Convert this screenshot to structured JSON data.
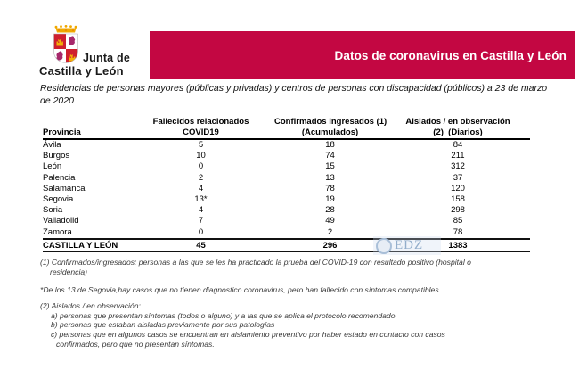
{
  "logo": {
    "line1": "Junta de",
    "line2": "Castilla y León"
  },
  "banner": {
    "title": "Datos de coronavirus en Castilla y León",
    "bg_color": "#C30742"
  },
  "subtitle": "Residencias de personas mayores (públicas y privadas) y centros de personas con discapacidad (públicos) a 23 de marzo de 2020",
  "table": {
    "headers": [
      {
        "line1": "Provincia",
        "line2": ""
      },
      {
        "line1": "Fallecidos relacionados",
        "line2": "COVID19"
      },
      {
        "line1": "Confirmados ingresados (1)",
        "line2": "(Acumulados)"
      },
      {
        "line1": "Aislados / en observación",
        "line2": "(2)  (Diarios)"
      }
    ],
    "rows": [
      [
        "Ávila",
        "5",
        "18",
        "84"
      ],
      [
        "Burgos",
        "10",
        "74",
        "211"
      ],
      [
        "León",
        "0",
        "15",
        "312"
      ],
      [
        "Palencia",
        "2",
        "13",
        "37"
      ],
      [
        "Salamanca",
        "4",
        "78",
        "120"
      ],
      [
        "Segovia",
        "13*",
        "19",
        "158"
      ],
      [
        "Soria",
        "4",
        "28",
        "298"
      ],
      [
        "Valladolid",
        "7",
        "49",
        "85"
      ],
      [
        "Zamora",
        "0",
        "2",
        "78"
      ]
    ],
    "total": [
      "CASTILLA Y LEÓN",
      "45",
      "296",
      "1383"
    ]
  },
  "watermark": {
    "text": "EDZ",
    "color": "#93AECB"
  },
  "footnotes": {
    "note1_line1": "(1) Confirmados/ingresados: personas a las que se les ha practicado la prueba del COVID-19 con resultado positivo (hospital o",
    "note1_line2": "residencia)",
    "segovia_note": "*De los 13 de Segovia,hay casos que no tienen diagnostico coronavirus, pero han fallecido con síntomas compatibles",
    "note2_title": "(2) Aislados / en observación:",
    "note2_item_a": "a) personas que presentan síntomas (todos o alguno) y a las que se aplica el protocolo recomendado",
    "note2_item_b": "b) personas que estaban aisladas previamente por sus patologías",
    "note2_item_c_line1": "c) personas que en algunos casos se encuentran en aislamiento preventivo por haber estado en contacto con casos",
    "note2_item_c_line2": "confirmados, pero que no presentan síntomas."
  }
}
